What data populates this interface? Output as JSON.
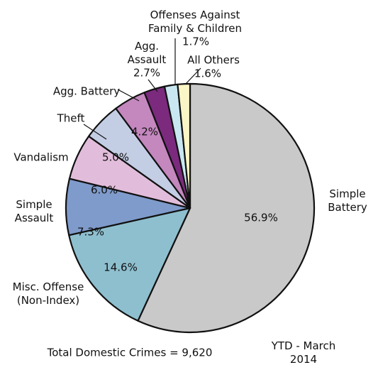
{
  "chart_data": {
    "type": "pie",
    "categories": [
      "Simple\nBattery",
      "Misc. Offense\n(Non-Index)",
      "Simple\nAssault",
      "Vandalism",
      "Theft",
      "Agg. Battery",
      "Agg.\nAssault",
      "Offenses Against\nFamily & Children",
      "All Others"
    ],
    "values": [
      56.9,
      14.6,
      7.3,
      6.0,
      5.0,
      4.2,
      2.7,
      1.7,
      1.6
    ],
    "value_labels": [
      "56.9%",
      "14.6%",
      "7.3%",
      "6.0%",
      "5.0%",
      "4.2%",
      "2.7%",
      "1.7%",
      "1.6%"
    ],
    "colors": [
      "#c9c9c9",
      "#8ebfcf",
      "#7f9bcb",
      "#e2bddb",
      "#c3cde4",
      "#c487be",
      "#7b2a7e",
      "#c9e7f1",
      "#fbf6c6"
    ],
    "annotations": [
      "Total Domestic Crimes = 9,620",
      "YTD - March 2014"
    ]
  }
}
